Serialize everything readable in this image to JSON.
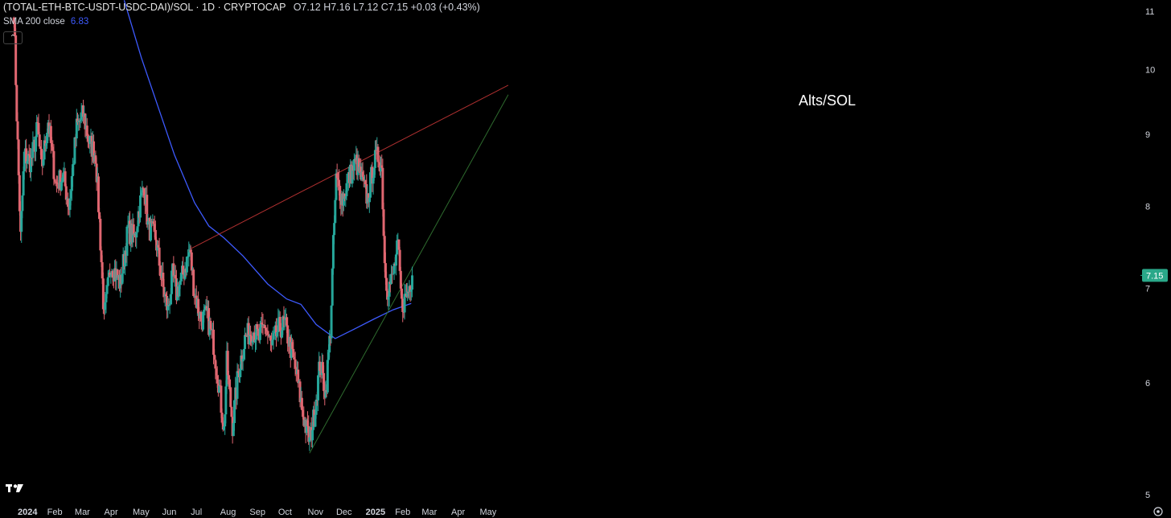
{
  "header": {
    "symbol": "(TOTAL-ETH-BTC-USDT-USDC-DAI)/SOL · 1D · CRYPTOCAP",
    "ohlc": "O7.12 H7.16 L7.12 C7.15 +0.03 (+0.43%)"
  },
  "indicator": {
    "label": "SMA 200 close",
    "value": "6.83"
  },
  "colors": {
    "up": "#26a69a",
    "down": "#e06670",
    "sma": "#3d5afe",
    "resistance": "#b03030",
    "support": "#2e6b2e",
    "price_tag": "#2aa889"
  },
  "icons": {
    "collapse": "chevron-up-icon",
    "logo": "tradingview-logo-icon",
    "settings": "gear-icon"
  },
  "chart_data": {
    "type": "candlestick",
    "annotation": "Alts/SOL",
    "y_axis": {
      "scale": "log",
      "ticks": [
        "11",
        "10",
        "9",
        "8",
        "7",
        "6",
        "5"
      ],
      "range": [
        5,
        11
      ]
    },
    "x_axis": {
      "ticks": [
        "2024",
        "Feb",
        "Mar",
        "Apr",
        "May",
        "Jun",
        "Jul",
        "Aug",
        "Sep",
        "Oct",
        "Nov",
        "Dec",
        "2025",
        "Feb",
        "Mar",
        "Apr",
        "May"
      ]
    },
    "last_price": "7.15",
    "sma200_last": 6.83,
    "price_anchors": [
      [
        "2023-12-28",
        11.0
      ],
      [
        "2023-12-31",
        9.3
      ],
      [
        "2024-01-04",
        7.6
      ],
      [
        "2024-01-08",
        8.7
      ],
      [
        "2024-01-15",
        8.6
      ],
      [
        "2024-01-22",
        9.1
      ],
      [
        "2024-01-26",
        8.5
      ],
      [
        "2024-02-02",
        9.2
      ],
      [
        "2024-02-10",
        8.3
      ],
      [
        "2024-02-18",
        8.4
      ],
      [
        "2024-02-24",
        8.0
      ],
      [
        "2024-03-03",
        9.1
      ],
      [
        "2024-03-10",
        9.3
      ],
      [
        "2024-03-16",
        8.9
      ],
      [
        "2024-03-23",
        8.7
      ],
      [
        "2024-03-27",
        7.8
      ],
      [
        "2024-04-01",
        6.65
      ],
      [
        "2024-04-08",
        7.3
      ],
      [
        "2024-04-18",
        7.05
      ],
      [
        "2024-04-26",
        7.7
      ],
      [
        "2024-05-03",
        7.6
      ],
      [
        "2024-05-08",
        8.0
      ],
      [
        "2024-05-13",
        8.3
      ],
      [
        "2024-05-17",
        7.75
      ],
      [
        "2024-05-25",
        7.6
      ],
      [
        "2024-06-02",
        7.0
      ],
      [
        "2024-06-07",
        6.75
      ],
      [
        "2024-06-12",
        7.15
      ],
      [
        "2024-06-16",
        6.95
      ],
      [
        "2024-06-24",
        7.2
      ],
      [
        "2024-06-30",
        7.45
      ],
      [
        "2024-07-05",
        6.95
      ],
      [
        "2024-07-12",
        6.65
      ],
      [
        "2024-07-18",
        6.7
      ],
      [
        "2024-07-25",
        6.4
      ],
      [
        "2024-07-31",
        5.95
      ],
      [
        "2024-08-05",
        5.55
      ],
      [
        "2024-08-08",
        6.2
      ],
      [
        "2024-08-14",
        5.6
      ],
      [
        "2024-08-20",
        6.1
      ],
      [
        "2024-08-27",
        6.45
      ],
      [
        "2024-09-04",
        6.55
      ],
      [
        "2024-09-11",
        6.45
      ],
      [
        "2024-09-17",
        6.6
      ],
      [
        "2024-09-24",
        6.35
      ],
      [
        "2024-10-01",
        6.55
      ],
      [
        "2024-10-08",
        6.6
      ],
      [
        "2024-10-14",
        6.35
      ],
      [
        "2024-10-20",
        6.1
      ],
      [
        "2024-10-27",
        5.7
      ],
      [
        "2024-11-03",
        5.45
      ],
      [
        "2024-11-08",
        5.7
      ],
      [
        "2024-11-14",
        6.2
      ],
      [
        "2024-11-20",
        5.9
      ],
      [
        "2024-11-25",
        6.55
      ],
      [
        "2024-11-28",
        7.5
      ],
      [
        "2024-12-01",
        8.35
      ],
      [
        "2024-12-08",
        8.1
      ],
      [
        "2024-12-15",
        8.4
      ],
      [
        "2024-12-22",
        8.6
      ],
      [
        "2024-12-29",
        8.3
      ],
      [
        "2025-01-03",
        8.1
      ],
      [
        "2025-01-10",
        8.6
      ],
      [
        "2025-01-15",
        8.7
      ],
      [
        "2025-01-18",
        8.5
      ],
      [
        "2025-01-21",
        7.3
      ],
      [
        "2025-01-24",
        7.0
      ],
      [
        "2025-01-29",
        7.1
      ],
      [
        "2025-02-04",
        7.5
      ],
      [
        "2025-02-08",
        6.8
      ],
      [
        "2025-02-14",
        6.95
      ],
      [
        "2025-02-19",
        7.15
      ]
    ],
    "sma200": [
      [
        "2024-04-22",
        11.2
      ],
      [
        "2024-05-10",
        10.2
      ],
      [
        "2024-05-28",
        9.4
      ],
      [
        "2024-06-14",
        8.7
      ],
      [
        "2024-07-05",
        8.05
      ],
      [
        "2024-07-20",
        7.75
      ],
      [
        "2024-08-05",
        7.6
      ],
      [
        "2024-08-25",
        7.38
      ],
      [
        "2024-09-20",
        7.05
      ],
      [
        "2024-10-10",
        6.88
      ],
      [
        "2024-10-25",
        6.82
      ],
      [
        "2024-11-10",
        6.6
      ],
      [
        "2024-11-30",
        6.45
      ],
      [
        "2024-12-20",
        6.55
      ],
      [
        "2025-01-10",
        6.66
      ],
      [
        "2025-01-30",
        6.76
      ],
      [
        "2025-02-18",
        6.83
      ]
    ],
    "trendlines": [
      {
        "name": "resistance",
        "from": [
          "2024-06-28",
          7.45
        ],
        "to": [
          "2025-05-31",
          9.75
        ]
      },
      {
        "name": "support",
        "from": [
          "2024-11-03",
          5.35
        ],
        "to": [
          "2025-05-31",
          9.6
        ]
      }
    ]
  }
}
